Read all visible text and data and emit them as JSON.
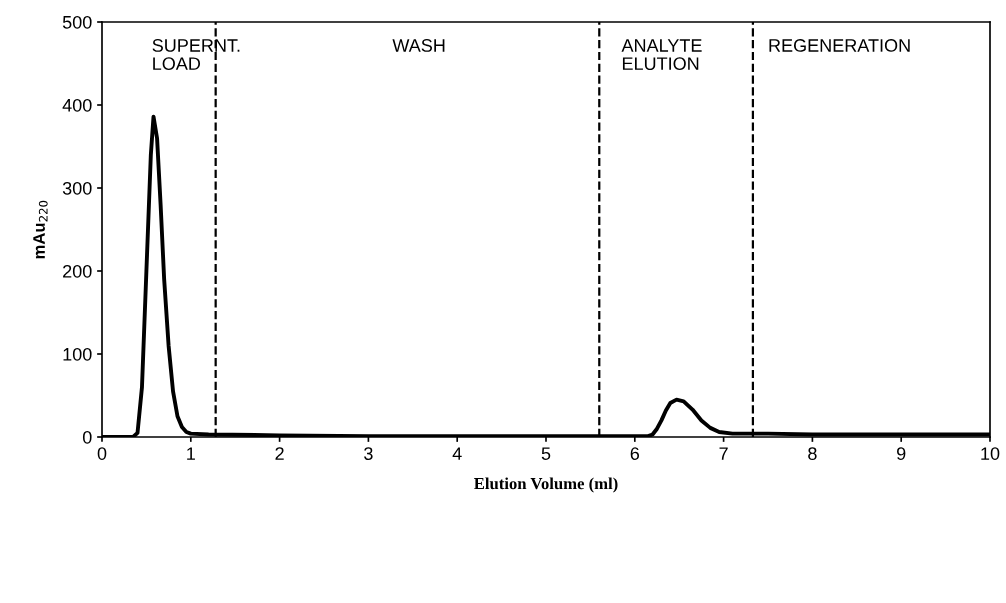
{
  "chart_data": {
    "type": "line",
    "xlabel": "Elution Volume (ml)",
    "ylabel": "mAu$_{220}$",
    "series": [
      {
        "color": "#000000",
        "x": [
          0,
          0.35,
          0.4,
          0.45,
          0.5,
          0.55,
          0.58,
          0.62,
          0.66,
          0.7,
          0.75,
          0.8,
          0.85,
          0.9,
          0.95,
          1.0,
          1.2,
          2,
          3,
          4,
          5,
          6,
          6.15,
          6.2,
          6.25,
          6.3,
          6.35,
          6.4,
          6.47,
          6.55,
          6.65,
          6.75,
          6.85,
          6.95,
          7.1,
          7.5,
          8,
          9,
          10
        ],
        "values": [
          0,
          0,
          5,
          60,
          200,
          340,
          386,
          360,
          280,
          190,
          110,
          55,
          25,
          12,
          6,
          4,
          3,
          2,
          1,
          1,
          1,
          1,
          1,
          3,
          10,
          20,
          32,
          41,
          45,
          43,
          33,
          20,
          11,
          6,
          4,
          4,
          3,
          3,
          3
        ]
      }
    ],
    "xlim": [
      0,
      10
    ],
    "xticks": [
      0,
      1,
      2,
      3,
      4,
      5,
      6,
      7,
      8,
      9,
      10
    ],
    "ylim": [
      0,
      500
    ],
    "yticks": [
      0,
      100,
      200,
      300,
      400,
      500
    ],
    "ref_lines": [
      {
        "axis": "x",
        "value": 1.28,
        "color": "#000000",
        "line_style": "dashed"
      },
      {
        "axis": "x",
        "value": 5.6,
        "color": "#000000",
        "line_style": "dashed"
      },
      {
        "axis": "x",
        "value": 7.33,
        "color": "#000000",
        "line_style": "dashed"
      }
    ],
    "annotations": [
      "SUPERNT.\nLOAD",
      "WASH",
      "ANALYTE\nELUTION",
      "REGENERATION"
    ],
    "grid": false,
    "legend": false,
    "marker": "none",
    "line_style": "solid"
  }
}
